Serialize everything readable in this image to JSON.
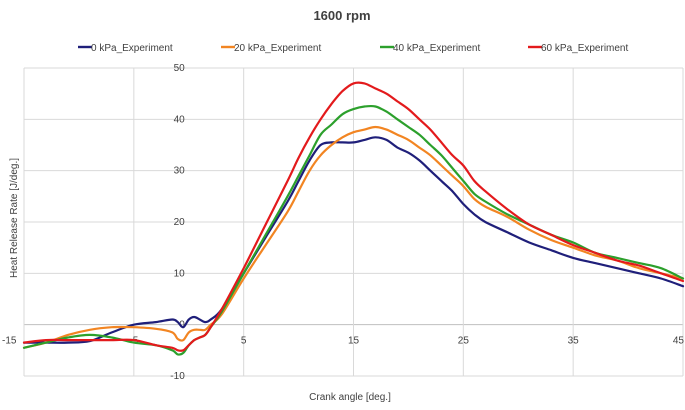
{
  "chart_data": {
    "type": "line",
    "title": "1600 rpm",
    "xlabel": "Crank angle [deg.]",
    "ylabel": "Heat Release Rate [J/deg.]",
    "xlim": [
      -15,
      45
    ],
    "ylim": [
      -10,
      50
    ],
    "x_ticks": [
      -15,
      -5,
      5,
      15,
      25,
      35,
      45
    ],
    "y_ticks": [
      -10,
      0,
      10,
      20,
      30,
      40,
      50
    ],
    "grid": true,
    "legend_position": "top",
    "series": [
      {
        "name": "0 kPa_Experiment",
        "color": "#1f1f7a",
        "points": [
          [
            -15,
            -3.5
          ],
          [
            -13,
            -3.5
          ],
          [
            -11,
            -3.5
          ],
          [
            -9,
            -3.2
          ],
          [
            -7,
            -1.5
          ],
          [
            -5,
            0
          ],
          [
            -3,
            0.5
          ],
          [
            -1.5,
            1
          ],
          [
            -1,
            0.5
          ],
          [
            -0.5,
            -0.5
          ],
          [
            0,
            1
          ],
          [
            0.5,
            1.5
          ],
          [
            1,
            1
          ],
          [
            1.5,
            0.5
          ],
          [
            2,
            1
          ],
          [
            3,
            3
          ],
          [
            5,
            10
          ],
          [
            7,
            17
          ],
          [
            9,
            24
          ],
          [
            10,
            28
          ],
          [
            11,
            32
          ],
          [
            12,
            35
          ],
          [
            13,
            35.5
          ],
          [
            14,
            35.5
          ],
          [
            15,
            35.5
          ],
          [
            16,
            36
          ],
          [
            17,
            36.5
          ],
          [
            18,
            36
          ],
          [
            19,
            34.5
          ],
          [
            20,
            33.5
          ],
          [
            21,
            32
          ],
          [
            22,
            30
          ],
          [
            23,
            28
          ],
          [
            24,
            26
          ],
          [
            25,
            23.5
          ],
          [
            26,
            21.5
          ],
          [
            27,
            20
          ],
          [
            29,
            18
          ],
          [
            31,
            16
          ],
          [
            33,
            14.5
          ],
          [
            35,
            13
          ],
          [
            37,
            12
          ],
          [
            39,
            11
          ],
          [
            41,
            10
          ],
          [
            43,
            9
          ],
          [
            45,
            7.5
          ]
        ]
      },
      {
        "name": "20 kPa_Experiment",
        "color": "#f28522",
        "points": [
          [
            -15,
            -4.5
          ],
          [
            -13,
            -3.5
          ],
          [
            -11,
            -2
          ],
          [
            -9,
            -1
          ],
          [
            -7,
            -0.5
          ],
          [
            -5,
            -0.5
          ],
          [
            -3,
            -0.8
          ],
          [
            -1.5,
            -1.5
          ],
          [
            -1,
            -2.8
          ],
          [
            -0.5,
            -3
          ],
          [
            0,
            -1.5
          ],
          [
            0.5,
            -1
          ],
          [
            1,
            -1
          ],
          [
            1.5,
            -1
          ],
          [
            2,
            0
          ],
          [
            3,
            2
          ],
          [
            5,
            9
          ],
          [
            7,
            15.5
          ],
          [
            9,
            22
          ],
          [
            10,
            26
          ],
          [
            11,
            30
          ],
          [
            12,
            33
          ],
          [
            13,
            35
          ],
          [
            14,
            36.5
          ],
          [
            15,
            37.5
          ],
          [
            16,
            38
          ],
          [
            17,
            38.5
          ],
          [
            18,
            38
          ],
          [
            19,
            37
          ],
          [
            20,
            36
          ],
          [
            21,
            34.5
          ],
          [
            22,
            33
          ],
          [
            23,
            31
          ],
          [
            24,
            29
          ],
          [
            25,
            27
          ],
          [
            26,
            24.5
          ],
          [
            27,
            23
          ],
          [
            29,
            21
          ],
          [
            31,
            18.5
          ],
          [
            33,
            16.5
          ],
          [
            35,
            15
          ],
          [
            37,
            13.5
          ],
          [
            39,
            12.5
          ],
          [
            41,
            11
          ],
          [
            43,
            10
          ],
          [
            45,
            9
          ]
        ]
      },
      {
        "name": "40 kPa_Experiment",
        "color": "#2ca02c",
        "points": [
          [
            -15,
            -4.5
          ],
          [
            -13,
            -3.5
          ],
          [
            -11,
            -2.5
          ],
          [
            -9,
            -2
          ],
          [
            -7,
            -2.5
          ],
          [
            -5,
            -3.5
          ],
          [
            -3,
            -4
          ],
          [
            -1.5,
            -5
          ],
          [
            -1,
            -5.8
          ],
          [
            -0.5,
            -5.5
          ],
          [
            0,
            -4
          ],
          [
            0.5,
            -3
          ],
          [
            1,
            -2.5
          ],
          [
            1.5,
            -2
          ],
          [
            2,
            -0.5
          ],
          [
            3,
            2.5
          ],
          [
            5,
            10
          ],
          [
            7,
            17.5
          ],
          [
            9,
            25
          ],
          [
            10,
            29
          ],
          [
            11,
            33
          ],
          [
            12,
            37
          ],
          [
            13,
            39
          ],
          [
            14,
            41
          ],
          [
            15,
            42
          ],
          [
            16,
            42.5
          ],
          [
            17,
            42.5
          ],
          [
            18,
            41.5
          ],
          [
            19,
            40
          ],
          [
            20,
            38.5
          ],
          [
            21,
            37
          ],
          [
            22,
            35
          ],
          [
            23,
            33
          ],
          [
            24,
            30.5
          ],
          [
            25,
            28
          ],
          [
            26,
            25.5
          ],
          [
            27,
            24
          ],
          [
            29,
            21.5
          ],
          [
            31,
            19.5
          ],
          [
            33,
            17.5
          ],
          [
            35,
            16
          ],
          [
            37,
            14
          ],
          [
            39,
            13
          ],
          [
            41,
            12
          ],
          [
            43,
            11
          ],
          [
            45,
            9
          ]
        ]
      },
      {
        "name": "60 kPa_Experiment",
        "color": "#e31a1c",
        "points": [
          [
            -15,
            -3.5
          ],
          [
            -13,
            -3
          ],
          [
            -11,
            -3
          ],
          [
            -9,
            -3
          ],
          [
            -7,
            -3
          ],
          [
            -5,
            -3
          ],
          [
            -3,
            -4
          ],
          [
            -1.5,
            -4.5
          ],
          [
            -1,
            -5
          ],
          [
            -0.5,
            -5
          ],
          [
            0,
            -4
          ],
          [
            0.5,
            -3
          ],
          [
            1,
            -2.5
          ],
          [
            1.5,
            -2
          ],
          [
            2,
            -0.5
          ],
          [
            3,
            3
          ],
          [
            5,
            11
          ],
          [
            7,
            19.5
          ],
          [
            9,
            28
          ],
          [
            10,
            32.5
          ],
          [
            11,
            36.5
          ],
          [
            12,
            40
          ],
          [
            13,
            43
          ],
          [
            14,
            45.5
          ],
          [
            15,
            47
          ],
          [
            16,
            47
          ],
          [
            17,
            46
          ],
          [
            18,
            45
          ],
          [
            19,
            43.5
          ],
          [
            20,
            42
          ],
          [
            21,
            40
          ],
          [
            22,
            38
          ],
          [
            23,
            35.5
          ],
          [
            24,
            33
          ],
          [
            25,
            31
          ],
          [
            26,
            28
          ],
          [
            27,
            26
          ],
          [
            29,
            22.5
          ],
          [
            31,
            19.5
          ],
          [
            33,
            17.5
          ],
          [
            35,
            15.5
          ],
          [
            37,
            14
          ],
          [
            39,
            12.5
          ],
          [
            41,
            11.5
          ],
          [
            43,
            10
          ],
          [
            45,
            8.5
          ]
        ]
      }
    ]
  }
}
